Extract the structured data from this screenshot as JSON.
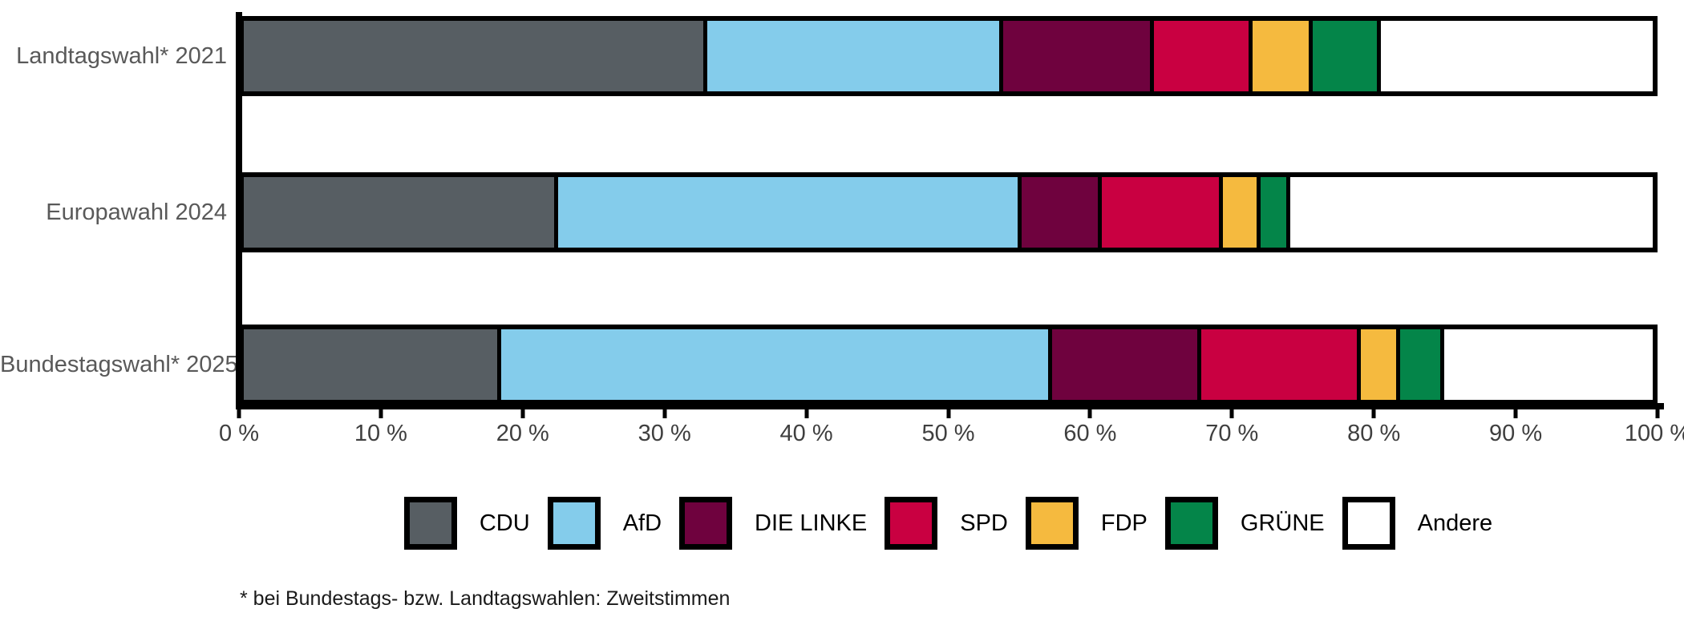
{
  "chart": {
    "footnote": "* bei Bundestags- bzw. Landtagswahlen: Zweitstimmen"
  },
  "chart_data": {
    "type": "bar",
    "orientation": "horizontal",
    "stacked": true,
    "unit": "%",
    "title": "",
    "xlabel": "",
    "ylabel": "",
    "xlim": [
      0,
      100
    ],
    "grid": false,
    "legend_position": "bottom",
    "categories": [
      "Landtagswahl* 2021",
      "Europawahl 2024",
      "Bundestagswahl* 2025"
    ],
    "series": [
      {
        "name": "CDU",
        "color": "#575E63",
        "values": [
          32.6,
          22.0,
          18.0
        ]
      },
      {
        "name": "AfD",
        "color": "#84CCEB",
        "values": [
          21.0,
          32.9,
          39.1
        ]
      },
      {
        "name": "DIE LINKE",
        "color": "#6F023E",
        "values": [
          10.7,
          5.7,
          10.6
        ]
      },
      {
        "name": "SPD",
        "color": "#C90041",
        "values": [
          7.0,
          8.6,
          11.3
        ]
      },
      {
        "name": "FDP",
        "color": "#F5BA3F",
        "values": [
          4.3,
          2.7,
          2.8
        ]
      },
      {
        "name": "GRÜNE",
        "color": "#048549",
        "values": [
          4.8,
          2.1,
          3.1
        ]
      },
      {
        "name": "Andere",
        "color": "#FFFFFF",
        "values": [
          19.6,
          26.0,
          15.1
        ]
      }
    ],
    "x_ticks": [
      "0 %",
      "10 %",
      "20 %",
      "30 %",
      "40 %",
      "50 %",
      "60 %",
      "70 %",
      "80 %",
      "90 %",
      "100 %"
    ]
  },
  "colors": {
    "bar_border": "#000000",
    "axis": "#000000",
    "category_label": "#595959",
    "tick_label": "#3F3F3F",
    "legend_label": "#000000",
    "background": "#FFFFFF"
  }
}
